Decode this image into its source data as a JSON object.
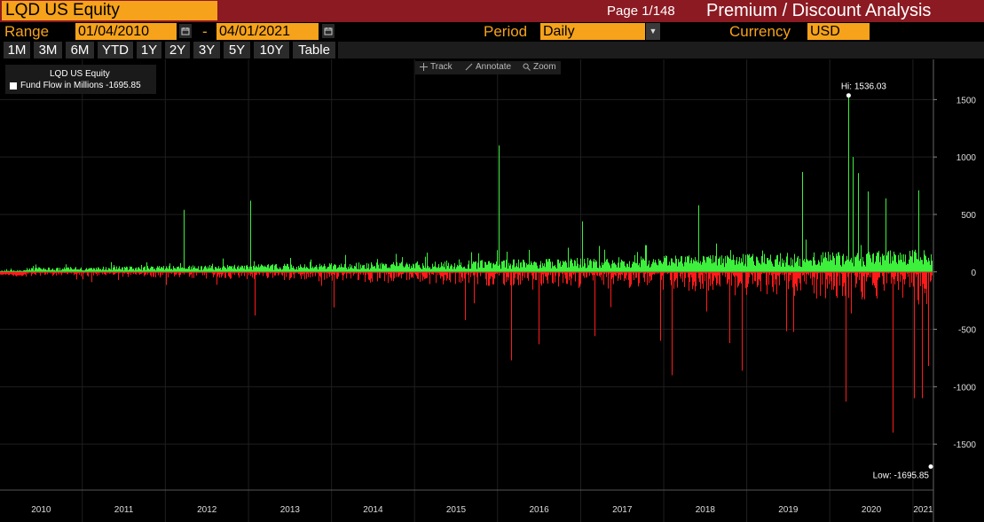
{
  "header": {
    "ticker": "LQD US Equity",
    "page": "Page 1/148",
    "title": "Premium / Discount Analysis"
  },
  "controls": {
    "range_label": "Range",
    "start_date": "01/04/2010",
    "separator": "-",
    "end_date": "04/01/2021",
    "period_label": "Period",
    "period_value": "Daily",
    "currency_label": "Currency",
    "currency_value": "USD"
  },
  "range_buttons": [
    "1M",
    "3M",
    "6M",
    "YTD",
    "1Y",
    "2Y",
    "3Y",
    "5Y",
    "10Y",
    "Table"
  ],
  "toolbar": {
    "track": "Track",
    "annotate": "Annotate",
    "zoom": "Zoom"
  },
  "icons": [
    "calendar-icon",
    "dropdown-arrow-icon",
    "track-icon",
    "annotate-icon",
    "zoom-icon"
  ],
  "colors": {
    "positive": "#3cf03c",
    "negative": "#ff1a1a",
    "accent": "#f6a21b",
    "header": "#8c1a22"
  },
  "chart_data": {
    "type": "bar",
    "legend": {
      "title": "LQD US Equity",
      "series_label": "Fund Flow in Millions",
      "last_value": "-1695.85",
      "position": "top-left"
    },
    "x_labels": [
      "2010",
      "2011",
      "2012",
      "2013",
      "2014",
      "2015",
      "2016",
      "2017",
      "2018",
      "2019",
      "2020",
      "2021"
    ],
    "xlim": [
      "2010-01-04",
      "2021-04-01"
    ],
    "ylim": [
      -1900,
      1850
    ],
    "y_ticks": [
      1500,
      1000,
      500,
      0,
      -500,
      -1000,
      -1500
    ],
    "y_tick_labels": [
      "1500",
      "1000",
      "500",
      "0",
      "-500",
      "-1000",
      "-1500"
    ],
    "annotations": [
      {
        "label": "Hi: 1536.03",
        "date": "2020-03-24",
        "value": 1536.03
      },
      {
        "label": "Low: -1695.85",
        "date": "2021-04-01",
        "value": -1695.85
      }
    ],
    "notable_values": [
      {
        "date": "2012-03-20",
        "value": 540
      },
      {
        "date": "2013-01-10",
        "value": 620
      },
      {
        "date": "2013-01-28",
        "value": -380
      },
      {
        "date": "2014-01-10",
        "value": -310
      },
      {
        "date": "2015-08-10",
        "value": -420
      },
      {
        "date": "2016-01-06",
        "value": 1100
      },
      {
        "date": "2016-03-01",
        "value": -770
      },
      {
        "date": "2016-07-01",
        "value": -630
      },
      {
        "date": "2017-01-05",
        "value": 440
      },
      {
        "date": "2017-03-01",
        "value": -560
      },
      {
        "date": "2017-12-15",
        "value": -600
      },
      {
        "date": "2018-02-05",
        "value": -900
      },
      {
        "date": "2018-06-01",
        "value": 580
      },
      {
        "date": "2018-10-15",
        "value": -620
      },
      {
        "date": "2018-12-10",
        "value": -860
      },
      {
        "date": "2019-09-01",
        "value": 870
      },
      {
        "date": "2020-03-10",
        "value": -1130
      },
      {
        "date": "2020-03-24",
        "value": 1536.03
      },
      {
        "date": "2020-04-10",
        "value": 1000
      },
      {
        "date": "2020-05-05",
        "value": 860
      },
      {
        "date": "2020-06-15",
        "value": 700
      },
      {
        "date": "2020-09-01",
        "value": 640
      },
      {
        "date": "2020-10-05",
        "value": -1400
      },
      {
        "date": "2021-01-05",
        "value": -1100
      },
      {
        "date": "2021-01-25",
        "value": 710
      },
      {
        "date": "2021-02-10",
        "value": -1100
      },
      {
        "date": "2021-03-10",
        "value": -820
      },
      {
        "date": "2021-04-01",
        "value": -1695.85
      }
    ]
  }
}
